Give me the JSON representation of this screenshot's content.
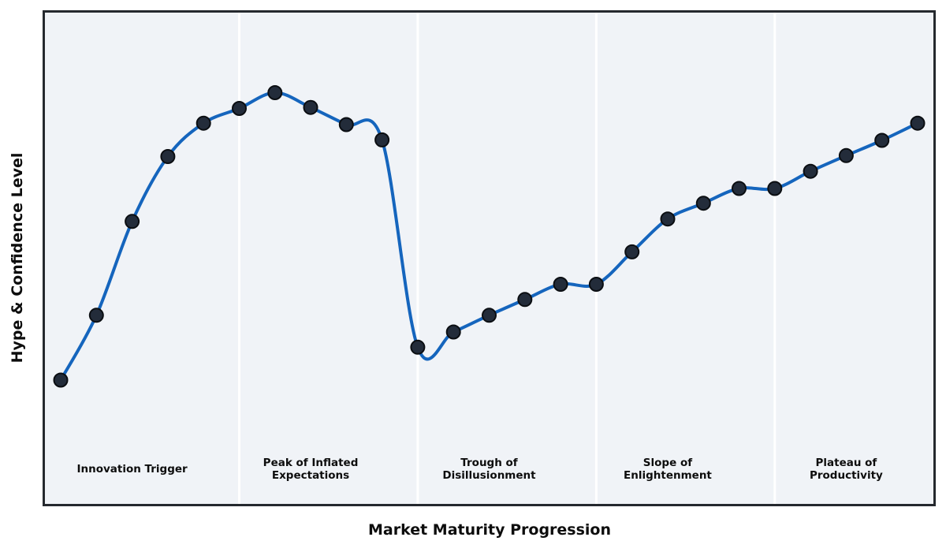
{
  "chart_data": {
    "type": "line",
    "title": "",
    "xlabel": "Market Maturity Progression",
    "ylabel": "Hype & Confidence Level",
    "x": [
      0,
      1,
      2,
      3,
      4,
      5,
      6,
      7,
      8,
      9,
      10,
      11,
      12,
      13,
      14,
      15,
      16,
      17,
      18,
      19,
      20,
      21,
      22,
      23,
      24
    ],
    "y": [
      25.2,
      38.4,
      57.5,
      70.7,
      77.5,
      80.5,
      83.7,
      80.7,
      77.2,
      74.1,
      31.9,
      35.0,
      38.4,
      41.6,
      44.7,
      44.7,
      51.3,
      58.0,
      61.2,
      64.2,
      64.2,
      67.7,
      70.9,
      74.0,
      77.5
    ],
    "xlim": [
      -0.5,
      24.5
    ],
    "ylim": [
      0,
      100
    ],
    "grid": false,
    "legend": "none",
    "smoothing": "spline",
    "marker": "circle",
    "phases": [
      {
        "label": "Innovation Trigger",
        "x_start": -0.5,
        "x_end": 5,
        "label_x": 2
      },
      {
        "label": "Peak of Inflated\nExpectations",
        "x_start": 5,
        "x_end": 10,
        "label_x": 7
      },
      {
        "label": "Trough of\nDisillusionment",
        "x_start": 10,
        "x_end": 15,
        "label_x": 12
      },
      {
        "label": "Slope of\nEnlightenment",
        "x_start": 15,
        "x_end": 20,
        "label_x": 17
      },
      {
        "label": "Plateau of\nProductivity",
        "x_start": 20,
        "x_end": 24.5,
        "label_x": 22
      }
    ],
    "colors": {
      "line": "#1565bd",
      "marker_fill": "#232c3a",
      "marker_edge": "#0b0e12",
      "plot_background": "#f0f3f7",
      "phase_divider": "#ffffff",
      "border": "#25292e",
      "text": "#0d0d0d"
    },
    "line_width": 4,
    "marker_radius": 8.5
  }
}
